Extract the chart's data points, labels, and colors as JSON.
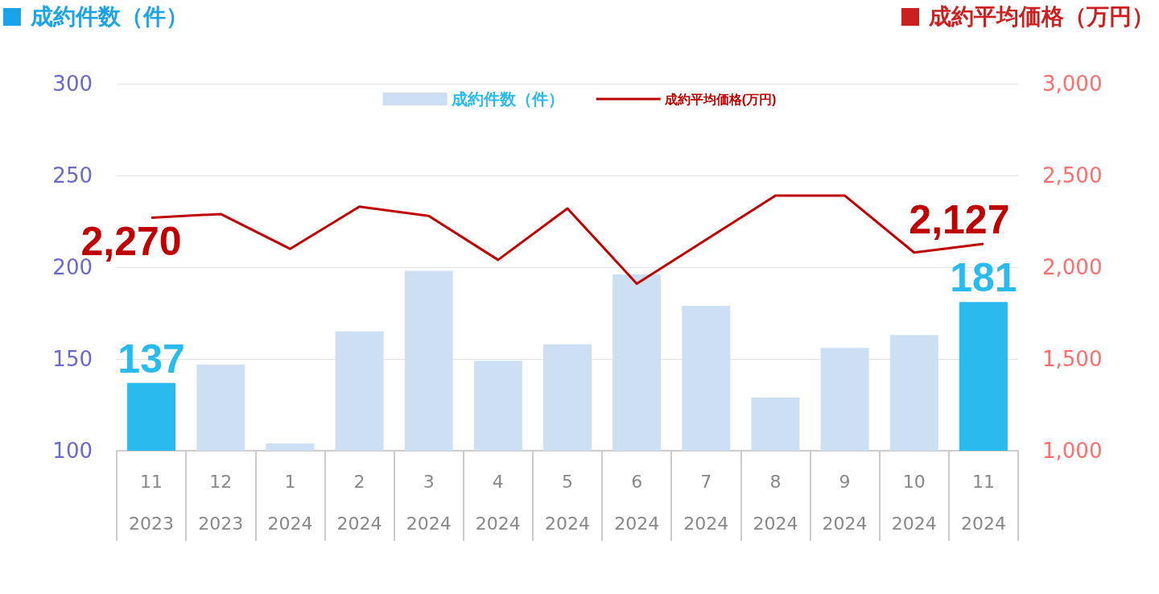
{
  "chart_data": {
    "type": "bar",
    "ylabel": "成約件数（件）",
    "y2label": "成約平均価格（万円）",
    "categories": [
      "11\n2023",
      "12\n2023",
      "1\n2024",
      "2\n2024",
      "3\n2024",
      "4\n2024",
      "5\n2024",
      "6\n2024",
      "7\n2024",
      "8\n2024",
      "9\n2024",
      "10\n2024",
      "11\n2024"
    ],
    "series": [
      {
        "name": "成約件数（件）",
        "color": "#cddff3",
        "colors": [
          "#29bbee",
          "#cddff3",
          "#cddff3",
          "#cddff3",
          "#cddff3",
          "#cddff3",
          "#cddff3",
          "#cddff3",
          "#cddff3",
          "#cddff3",
          "#cddff3",
          "#cddff3",
          "#29bbee"
        ],
        "values": [
          137,
          147,
          104,
          165,
          198,
          149,
          158,
          196,
          179,
          129,
          156,
          163,
          181
        ],
        "value_labels": [
          "137",
          null,
          null,
          null,
          null,
          null,
          null,
          null,
          null,
          null,
          null,
          null,
          "181"
        ]
      },
      {
        "name": "成約平均価格(万円)",
        "type": "line",
        "axis": "y2",
        "color": "#c00000",
        "values": [
          2270,
          2290,
          2100,
          2330,
          2280,
          2040,
          2320,
          1910,
          2150,
          2390,
          2390,
          2080,
          2127
        ],
        "value_labels": [
          "2,270",
          null,
          null,
          null,
          null,
          null,
          null,
          null,
          null,
          null,
          null,
          null,
          "2,127"
        ]
      }
    ],
    "ylim": [
      100,
      300
    ],
    "yticks": [
      100,
      150,
      200,
      250,
      300
    ],
    "y2lim": [
      1000,
      3000
    ],
    "y2ticks": [
      {
        "value": 1000,
        "label": "1,000"
      },
      {
        "value": 1500,
        "label": "1,500"
      },
      {
        "value": 2000,
        "label": "2,000"
      },
      {
        "value": 2500,
        "label": "2,500"
      },
      {
        "value": 3000,
        "label": "3,000"
      }
    ],
    "grid": "y",
    "legend": "top",
    "marker": "none"
  }
}
